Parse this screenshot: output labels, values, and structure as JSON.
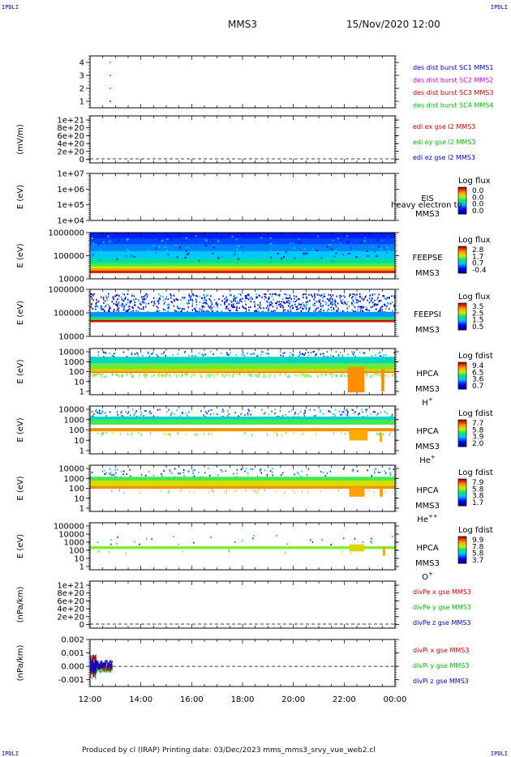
{
  "corner_label": "IPDLI",
  "header": {
    "spacecraft": "MMS3",
    "datetime": "15/Nov/2020 12:00"
  },
  "footer": {
    "text": "Produced by cl (IRAP)    Printing date: 03/Dec/2023    mms_mms3_srvy_vue_web2.cl"
  },
  "time_axis": {
    "labels": [
      "12:00",
      "14:00",
      "16:00",
      "18:00",
      "20:00",
      "22:00",
      "00:00"
    ]
  },
  "chart_data": [
    {
      "type": "scatter",
      "panel": "burst",
      "ylim": [
        0.5,
        4.5
      ],
      "yticks": [
        "1",
        "2",
        "3",
        "4"
      ],
      "legend": [
        {
          "text": "des dist burst SC1 MMS1",
          "color": "#0000cc"
        },
        {
          "text": "des dist burst SC2 MMS2",
          "color": "#cc00cc"
        },
        {
          "text": "des dist burst SC3 MMS3",
          "color": "#cc0000"
        },
        {
          "text": "des dist burst SC4 MMS4",
          "color": "#00bb00"
        }
      ],
      "series": [
        {
          "color": "#00bb00",
          "values": [
            4
          ]
        },
        {
          "color": "#cc0000",
          "values": [
            3
          ]
        },
        {
          "color": "#cc00cc",
          "values": [
            2
          ]
        },
        {
          "color": "#0000cc",
          "values": [
            1
          ]
        }
      ]
    },
    {
      "type": "line",
      "panel": "edi",
      "ylabel": "(mV/m)",
      "yticks": [
        "1e+21",
        "8e+20",
        "6e+20",
        "4e+20",
        "2e+20",
        "0"
      ],
      "legend": [
        {
          "text": "edi ex gse l2 MMS3",
          "color": "#cc0000"
        },
        {
          "text": "edi ey gse l2 MMS3",
          "color": "#00bb00"
        },
        {
          "text": "edi ez gse l2 MMS3",
          "color": "#0000cc"
        }
      ]
    },
    {
      "type": "heatmap",
      "panel": "eis",
      "ylabel": "E (eV)",
      "yticks": [
        "1e+07",
        "1e+06",
        "1e+05",
        "1e+04"
      ],
      "instrument": [
        "EIS",
        "MMS3"
      ],
      "overlay_text": "heavy electron to",
      "colorbar": {
        "title": "Log flux",
        "ticks": [
          "0.0",
          "0.0",
          "0.0",
          "0.0"
        ]
      }
    },
    {
      "type": "heatmap",
      "panel": "feepse",
      "ylabel": "E (eV)",
      "yticks": [
        "1000000",
        "100000",
        "10000"
      ],
      "instrument": [
        "FEEPSE",
        "MMS3"
      ],
      "colorbar": {
        "title": "Log flux",
        "ticks": [
          "2.8",
          "1.7",
          "0.7",
          "-0.4"
        ]
      }
    },
    {
      "type": "heatmap",
      "panel": "feepsi",
      "ylabel": "E (eV)",
      "yticks": [
        "1000000",
        "100000",
        "10000"
      ],
      "instrument": [
        "FEEPSI",
        "MMS3"
      ],
      "colorbar": {
        "title": "Log flux",
        "ticks": [
          "3.5",
          "2.5",
          "1.5",
          "0.5"
        ]
      }
    },
    {
      "type": "heatmap",
      "panel": "hpca_h",
      "ylabel": "E (eV)",
      "yticks": [
        "10000",
        "1000",
        "100",
        "10",
        "1"
      ],
      "instrument": [
        "HPCA",
        "MMS3"
      ],
      "species": "H",
      "charge": "+",
      "colorbar": {
        "title": "Log fdist",
        "ticks": [
          "9.4",
          "6.5",
          "3.6",
          "0.7"
        ]
      }
    },
    {
      "type": "heatmap",
      "panel": "hpca_he",
      "ylabel": "E (eV)",
      "yticks": [
        "10000",
        "1000",
        "100",
        "10",
        "1"
      ],
      "instrument": [
        "HPCA",
        "MMS3"
      ],
      "species": "He",
      "charge": "+",
      "colorbar": {
        "title": "Log fdist",
        "ticks": [
          "7.7",
          "5.8",
          "3.9",
          "2.0"
        ]
      }
    },
    {
      "type": "heatmap",
      "panel": "hpca_hepp",
      "ylabel": "E (eV)",
      "yticks": [
        "10000",
        "1000",
        "100",
        "10",
        "1"
      ],
      "instrument": [
        "HPCA",
        "MMS3"
      ],
      "species": "He",
      "charge": "++",
      "colorbar": {
        "title": "Log fdist",
        "ticks": [
          "7.9",
          "5.8",
          "3.8",
          "1.7"
        ]
      }
    },
    {
      "type": "heatmap",
      "panel": "hpca_o",
      "ylabel": "E (eV)",
      "yticks": [
        "100000",
        "10000",
        "1000",
        "100",
        "10",
        "1"
      ],
      "instrument": [
        "HPCA",
        "MMS3"
      ],
      "species": "O",
      "charge": "+",
      "colorbar": {
        "title": "Log fdist",
        "ticks": [
          "9.9",
          "7.8",
          "5.8",
          "3.7"
        ]
      }
    },
    {
      "type": "line",
      "panel": "divpe",
      "ylabel": "(nPa/km)",
      "yticks": [
        "1e+21",
        "8e+20",
        "6e+20",
        "4e+20",
        "2e+20",
        "0"
      ],
      "legend": [
        {
          "text": "divPe x gse MMS3",
          "color": "#cc0000"
        },
        {
          "text": "divPe y gse MMS3",
          "color": "#00bb00"
        },
        {
          "text": "divPe z gse MMS3",
          "color": "#0000cc"
        }
      ]
    },
    {
      "type": "line",
      "panel": "divpi",
      "ylabel": "(nPa/km)",
      "ylim": [
        -0.0015,
        0.002
      ],
      "yticks": [
        "0.002",
        "0.001",
        "0.000",
        "-0.001"
      ],
      "legend": [
        {
          "text": "divPi x gse MMS3",
          "color": "#cc0000"
        },
        {
          "text": "divPi y gse MMS3",
          "color": "#00bb00"
        },
        {
          "text": "divPi z gse MMS3",
          "color": "#0000cc"
        }
      ]
    }
  ]
}
